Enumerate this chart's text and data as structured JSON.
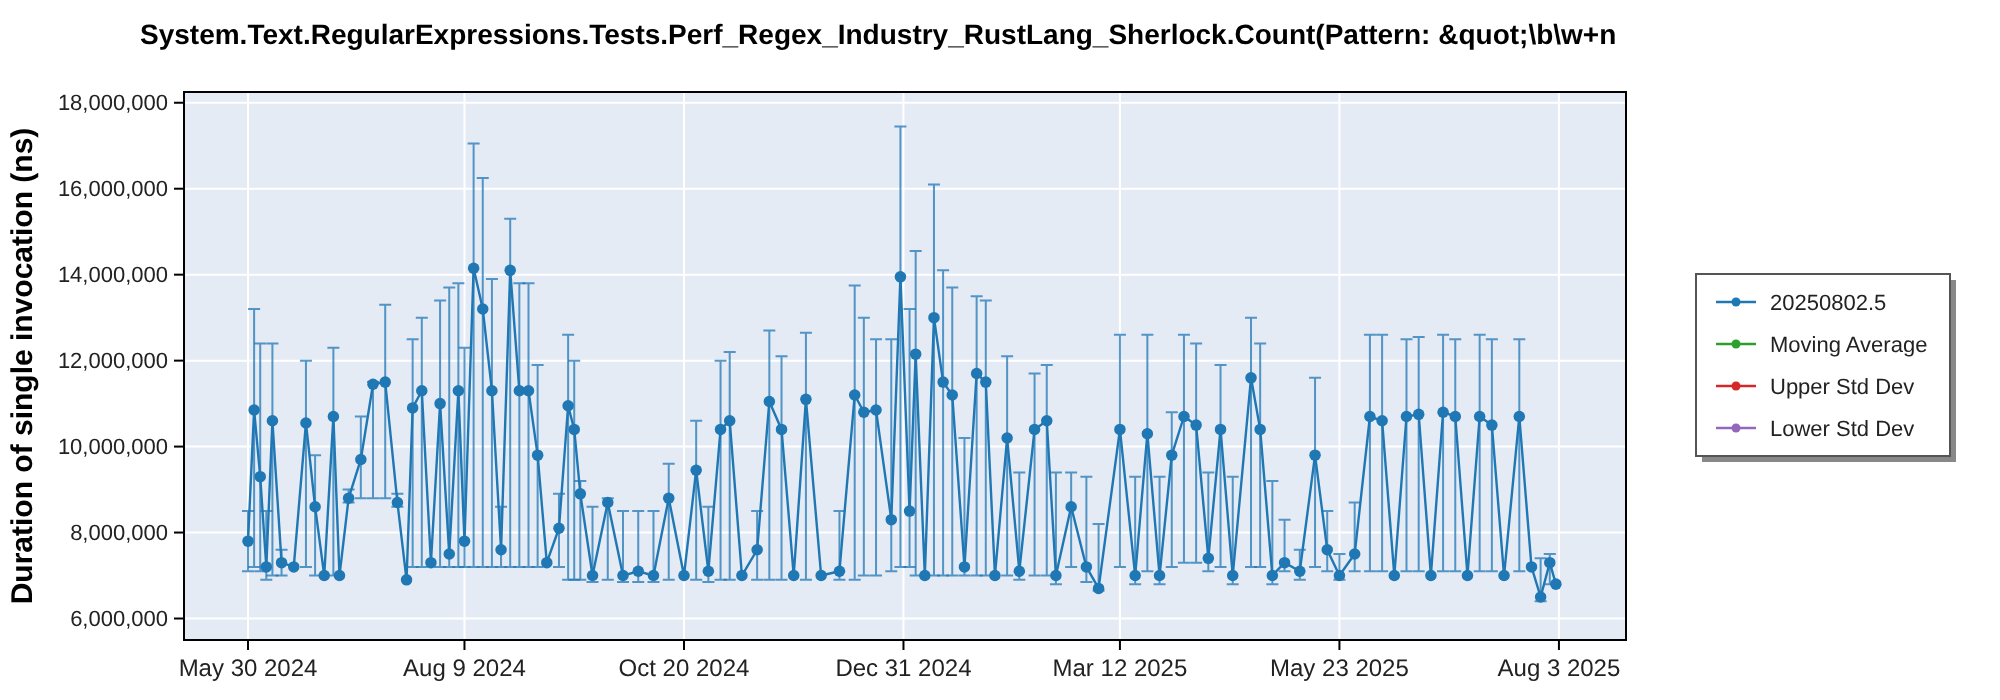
{
  "chart_data": {
    "type": "line",
    "title": "System.Text.RegularExpressions.Tests.Perf_Regex_Industry_RustLang_Sherlock.Count(Pattern: &quot;\\b\\w+n",
    "ylabel": "Duration of single invocation (ns)",
    "xlim": [
      "2024-05-09",
      "2025-08-25"
    ],
    "xticks": [
      {
        "value": "2024-05-30",
        "label": "May 30 2024"
      },
      {
        "value": "2024-08-09",
        "label": "Aug 9 2024"
      },
      {
        "value": "2024-10-20",
        "label": "Oct 20 2024"
      },
      {
        "value": "2024-12-31",
        "label": "Dec 31 2024"
      },
      {
        "value": "2025-03-12",
        "label": "Mar 12 2025"
      },
      {
        "value": "2025-05-23",
        "label": "May 23 2025"
      },
      {
        "value": "2025-08-03",
        "label": "Aug 3 2025"
      }
    ],
    "ylim": [
      5500000,
      18250000
    ],
    "yticks": [
      {
        "value": 6000000,
        "label": "6,000,000"
      },
      {
        "value": 8000000,
        "label": "8,000,000"
      },
      {
        "value": 10000000,
        "label": "10,000,000"
      },
      {
        "value": 12000000,
        "label": "12,000,000"
      },
      {
        "value": 14000000,
        "label": "14,000,000"
      },
      {
        "value": 16000000,
        "label": "16,000,000"
      },
      {
        "value": 18000000,
        "label": "18,000,000"
      }
    ],
    "grid": true,
    "legend": "right",
    "marker": "circle",
    "line_style": "solid",
    "x": [
      "2024-05-30",
      "2024-06-01",
      "2024-06-03",
      "2024-06-05",
      "2024-06-07",
      "2024-06-10",
      "2024-06-14",
      "2024-06-18",
      "2024-06-21",
      "2024-06-24",
      "2024-06-27",
      "2024-06-29",
      "2024-07-02",
      "2024-07-06",
      "2024-07-10",
      "2024-07-14",
      "2024-07-18",
      "2024-07-21",
      "2024-07-23",
      "2024-07-26",
      "2024-07-29",
      "2024-08-01",
      "2024-08-04",
      "2024-08-07",
      "2024-08-09",
      "2024-08-12",
      "2024-08-15",
      "2024-08-18",
      "2024-08-21",
      "2024-08-24",
      "2024-08-27",
      "2024-08-30",
      "2024-09-02",
      "2024-09-05",
      "2024-09-09",
      "2024-09-12",
      "2024-09-14",
      "2024-09-16",
      "2024-09-20",
      "2024-09-25",
      "2024-09-30",
      "2024-10-05",
      "2024-10-10",
      "2024-10-15",
      "2024-10-20",
      "2024-10-24",
      "2024-10-28",
      "2024-11-01",
      "2024-11-04",
      "2024-11-08",
      "2024-11-13",
      "2024-11-17",
      "2024-11-21",
      "2024-11-25",
      "2024-11-29",
      "2024-12-04",
      "2024-12-10",
      "2024-12-15",
      "2024-12-18",
      "2024-12-22",
      "2024-12-27",
      "2024-12-30",
      "2025-01-02",
      "2025-01-04",
      "2025-01-07",
      "2025-01-10",
      "2025-01-13",
      "2025-01-16",
      "2025-01-20",
      "2025-01-24",
      "2025-01-27",
      "2025-01-30",
      "2025-02-03",
      "2025-02-07",
      "2025-02-12",
      "2025-02-16",
      "2025-02-19",
      "2025-02-24",
      "2025-03-01",
      "2025-03-05",
      "2025-03-12",
      "2025-03-17",
      "2025-03-21",
      "2025-03-25",
      "2025-03-29",
      "2025-04-02",
      "2025-04-06",
      "2025-04-10",
      "2025-04-14",
      "2025-04-18",
      "2025-04-24",
      "2025-04-27",
      "2025-05-01",
      "2025-05-05",
      "2025-05-10",
      "2025-05-15",
      "2025-05-19",
      "2025-05-23",
      "2025-05-28",
      "2025-06-02",
      "2025-06-06",
      "2025-06-10",
      "2025-06-14",
      "2025-06-18",
      "2025-06-22",
      "2025-06-26",
      "2025-06-30",
      "2025-07-04",
      "2025-07-08",
      "2025-07-12",
      "2025-07-16",
      "2025-07-21",
      "2025-07-25",
      "2025-07-28",
      "2025-07-31",
      "2025-08-02"
    ],
    "series": [
      {
        "name": "20250802.5",
        "color": "#1f77b4",
        "values": [
          7800000,
          10850000,
          9300000,
          7200000,
          10600000,
          7300000,
          7200000,
          10550000,
          8600000,
          7000000,
          10700000,
          7000000,
          8800000,
          9700000,
          11450000,
          11500000,
          8700000,
          6900000,
          10900000,
          11300000,
          7300000,
          11000000,
          7500000,
          11300000,
          7800000,
          14150000,
          13200000,
          11300000,
          7600000,
          14100000,
          11300000,
          11300000,
          9800000,
          7300000,
          8100000,
          10950000,
          10400000,
          8900000,
          7000000,
          8700000,
          7000000,
          7100000,
          7000000,
          8800000,
          7000000,
          9450000,
          7100000,
          10400000,
          10600000,
          7000000,
          7600000,
          11050000,
          10400000,
          7000000,
          11100000,
          7000000,
          7100000,
          11200000,
          10800000,
          10850000,
          8300000,
          13950000,
          8500000,
          12150000,
          7000000,
          13000000,
          11500000,
          11200000,
          7200000,
          11700000,
          11500000,
          7000000,
          10200000,
          7100000,
          10400000,
          10600000,
          7000000,
          8600000,
          7200000,
          6700000,
          10400000,
          7000000,
          10300000,
          7000000,
          9800000,
          10700000,
          10500000,
          7400000,
          10400000,
          7000000,
          11600000,
          10400000,
          7000000,
          7300000,
          7100000,
          9800000,
          7600000,
          7000000,
          7500000,
          10700000,
          10600000,
          7000000,
          10700000,
          10750000,
          7000000,
          10800000,
          10700000,
          7000000,
          10700000,
          10500000,
          7000000,
          10700000,
          7200000,
          6500000,
          7300000,
          6800000
        ],
        "errors": [
          [
            7100000,
            8500000
          ],
          [
            7200000,
            13200000
          ],
          [
            7100000,
            12400000
          ],
          [
            6900000,
            8500000
          ],
          [
            7000000,
            12400000
          ],
          [
            7000000,
            7600000
          ],
          null,
          [
            7200000,
            12000000
          ],
          [
            7000000,
            9800000
          ],
          null,
          [
            7000000,
            12300000
          ],
          null,
          [
            8700000,
            9000000
          ],
          [
            8800000,
            10700000
          ],
          [
            8800000,
            11500000
          ],
          [
            8800000,
            13300000
          ],
          [
            8600000,
            8900000
          ],
          null,
          [
            7200000,
            12500000
          ],
          [
            7200000,
            13000000
          ],
          null,
          [
            7200000,
            13400000
          ],
          [
            7200000,
            13700000
          ],
          [
            7200000,
            13800000
          ],
          [
            7200000,
            12300000
          ],
          [
            7200000,
            17050000
          ],
          [
            7200000,
            16250000
          ],
          [
            7200000,
            13900000
          ],
          [
            7200000,
            8600000
          ],
          [
            7200000,
            15300000
          ],
          [
            7200000,
            13800000
          ],
          [
            7200000,
            13800000
          ],
          [
            7200000,
            11900000
          ],
          null,
          [
            7200000,
            8900000
          ],
          [
            6900000,
            12600000
          ],
          [
            6900000,
            12000000
          ],
          [
            6900000,
            9200000
          ],
          [
            6850000,
            8600000
          ],
          [
            6900000,
            8800000
          ],
          [
            6850000,
            8500000
          ],
          [
            6850000,
            8500000
          ],
          [
            6850000,
            8500000
          ],
          [
            6900000,
            9600000
          ],
          null,
          [
            6900000,
            10600000
          ],
          [
            6850000,
            8600000
          ],
          [
            6900000,
            12000000
          ],
          [
            6900000,
            12200000
          ],
          null,
          [
            6900000,
            8500000
          ],
          [
            6900000,
            12700000
          ],
          [
            6900000,
            12100000
          ],
          null,
          [
            6900000,
            12650000
          ],
          null,
          [
            6900000,
            8500000
          ],
          [
            6900000,
            13750000
          ],
          [
            7000000,
            13000000
          ],
          [
            7000000,
            12500000
          ],
          [
            7100000,
            12500000
          ],
          [
            7200000,
            17450000
          ],
          [
            7200000,
            13200000
          ],
          [
            7000000,
            14550000
          ],
          null,
          [
            7000000,
            16100000
          ],
          [
            7000000,
            14100000
          ],
          [
            7000000,
            13700000
          ],
          [
            7000000,
            10200000
          ],
          [
            7000000,
            13500000
          ],
          [
            7000000,
            13400000
          ],
          null,
          [
            7000000,
            12100000
          ],
          [
            6900000,
            9400000
          ],
          [
            7000000,
            11700000
          ],
          [
            7000000,
            11900000
          ],
          [
            6800000,
            9400000
          ],
          [
            7200000,
            9400000
          ],
          [
            6850000,
            9300000
          ],
          [
            6650000,
            8200000
          ],
          [
            7200000,
            12600000
          ],
          [
            6800000,
            9300000
          ],
          [
            7100000,
            12600000
          ],
          [
            6800000,
            9300000
          ],
          [
            7200000,
            10800000
          ],
          [
            7300000,
            12600000
          ],
          [
            7300000,
            12400000
          ],
          [
            7100000,
            9400000
          ],
          [
            7200000,
            11900000
          ],
          [
            6800000,
            9300000
          ],
          [
            7200000,
            13000000
          ],
          [
            7200000,
            12400000
          ],
          [
            6800000,
            9200000
          ],
          [
            7100000,
            8300000
          ],
          [
            6900000,
            7600000
          ],
          [
            7200000,
            11600000
          ],
          [
            7100000,
            8500000
          ],
          [
            6900000,
            7500000
          ],
          [
            7100000,
            8700000
          ],
          [
            7100000,
            12600000
          ],
          [
            7100000,
            12600000
          ],
          null,
          [
            7100000,
            12500000
          ],
          [
            7100000,
            12550000
          ],
          null,
          [
            7100000,
            12600000
          ],
          [
            7100000,
            12500000
          ],
          null,
          [
            7100000,
            12600000
          ],
          [
            7100000,
            12500000
          ],
          null,
          [
            7100000,
            12500000
          ],
          null,
          [
            6400000,
            7400000
          ],
          [
            6800000,
            7500000
          ],
          null
        ]
      },
      {
        "name": "Moving Average",
        "color": "#2ca02c",
        "values": [
          null,
          null,
          null,
          null,
          null,
          null,
          null,
          null,
          null,
          null,
          null,
          null,
          null,
          null,
          null,
          null,
          null,
          null,
          null,
          null,
          null,
          null,
          null,
          null,
          null,
          null,
          null,
          null,
          null,
          null,
          null,
          null,
          null,
          null,
          null,
          null,
          null,
          null,
          null,
          null,
          null,
          null,
          null,
          null,
          null,
          null,
          null,
          null,
          null,
          null,
          null,
          null,
          null,
          null,
          null,
          null,
          null,
          null,
          null,
          null,
          null,
          null,
          null,
          null,
          null,
          null,
          null,
          null,
          null,
          null,
          null,
          null,
          null,
          null,
          null,
          null,
          null,
          null,
          null,
          null,
          null,
          null,
          null,
          null,
          null,
          null,
          null,
          null,
          null,
          null,
          null,
          null,
          null,
          null,
          null,
          null,
          null,
          null,
          null,
          null,
          null,
          null,
          null,
          null,
          null,
          null,
          null,
          null,
          null,
          null,
          null,
          null,
          null,
          null,
          null,
          null
        ]
      },
      {
        "name": "Upper Std Dev",
        "color": "#d62728",
        "values": [
          null,
          null,
          null,
          null,
          null,
          null,
          null,
          null,
          null,
          null,
          null,
          null,
          null,
          null,
          null,
          null,
          null,
          null,
          null,
          null,
          null,
          null,
          null,
          null,
          null,
          null,
          null,
          null,
          null,
          null,
          null,
          null,
          null,
          null,
          null,
          null,
          null,
          null,
          null,
          null,
          null,
          null,
          null,
          null,
          null,
          null,
          null,
          null,
          null,
          null,
          null,
          null,
          null,
          null,
          null,
          null,
          null,
          null,
          null,
          null,
          null,
          null,
          null,
          null,
          null,
          null,
          null,
          null,
          null,
          null,
          null,
          null,
          null,
          null,
          null,
          null,
          null,
          null,
          null,
          null,
          null,
          null,
          null,
          null,
          null,
          null,
          null,
          null,
          null,
          null,
          null,
          null,
          null,
          null,
          null,
          null,
          null,
          null,
          null,
          null,
          null,
          null,
          null,
          null,
          null,
          null,
          null,
          null,
          null,
          null,
          null,
          null,
          null,
          null,
          null,
          null
        ]
      },
      {
        "name": "Lower Std Dev",
        "color": "#9467bd",
        "values": [
          null,
          null,
          null,
          null,
          null,
          null,
          null,
          null,
          null,
          null,
          null,
          null,
          null,
          null,
          null,
          null,
          null,
          null,
          null,
          null,
          null,
          null,
          null,
          null,
          null,
          null,
          null,
          null,
          null,
          null,
          null,
          null,
          null,
          null,
          null,
          null,
          null,
          null,
          null,
          null,
          null,
          null,
          null,
          null,
          null,
          null,
          null,
          null,
          null,
          null,
          null,
          null,
          null,
          null,
          null,
          null,
          null,
          null,
          null,
          null,
          null,
          null,
          null,
          null,
          null,
          null,
          null,
          null,
          null,
          null,
          null,
          null,
          null,
          null,
          null,
          null,
          null,
          null,
          null,
          null,
          null,
          null,
          null,
          null,
          null,
          null,
          null,
          null,
          null,
          null,
          null,
          null,
          null,
          null,
          null,
          null,
          null,
          null,
          null,
          null,
          null,
          null,
          null,
          null,
          null,
          null,
          null,
          null,
          null,
          null,
          null,
          null,
          null,
          null,
          null,
          null
        ]
      }
    ]
  }
}
